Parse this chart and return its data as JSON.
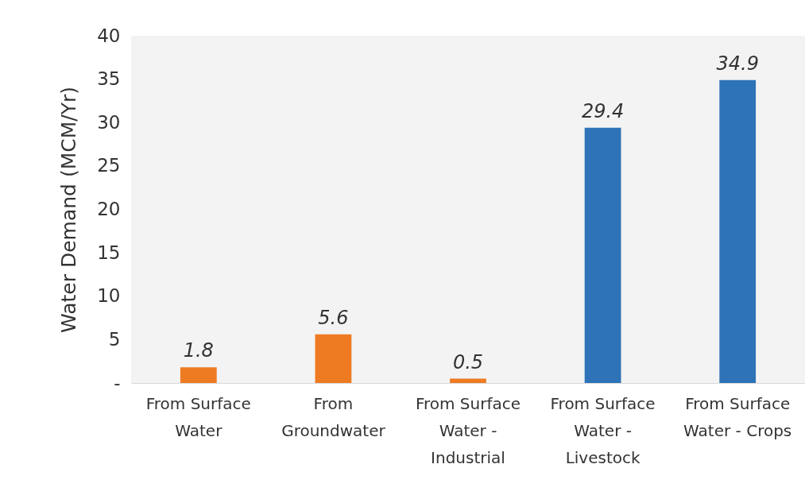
{
  "chart_data": {
    "type": "bar",
    "ylabel": "Water Demand (MCM/Yr)",
    "categories": [
      "From Surface Water",
      "From Groundwater",
      "From Surface Water - Industrial",
      "From Surface Water - Livestock",
      "From Surface Water - Crops"
    ],
    "values": [
      1.8,
      5.6,
      0.5,
      29.4,
      34.9
    ],
    "colors": [
      "#ee7b22",
      "#ee7b22",
      "#ee7b22",
      "#2e73b8",
      "#2e73b8"
    ],
    "ylim": [
      0,
      40
    ],
    "yticks": [
      {
        "value": 0,
        "label": "-"
      },
      5,
      10,
      15,
      20,
      25,
      30,
      35,
      40
    ],
    "data_labels": true
  }
}
